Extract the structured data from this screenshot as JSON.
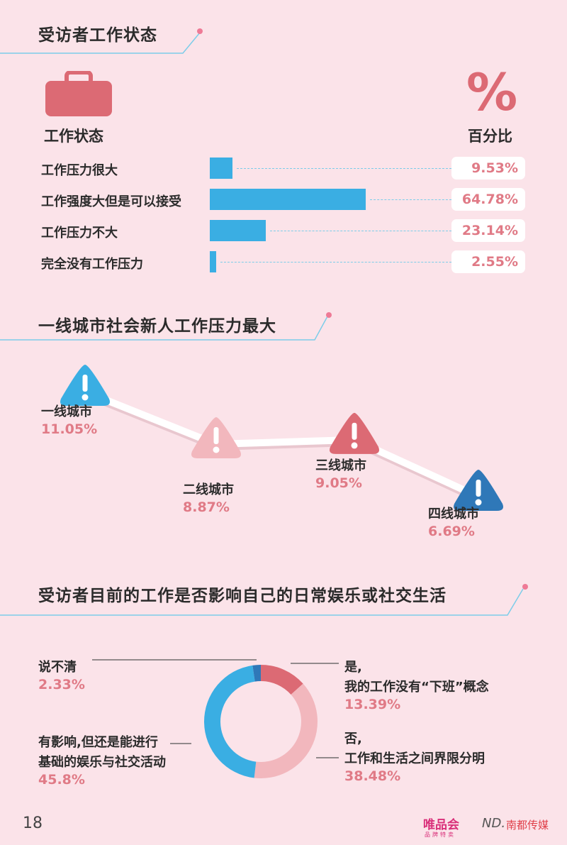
{
  "sections": {
    "work_status_title": "受访者工作状态",
    "city_title": "一线城市社会新人工作压力最大",
    "impact_title": "受访者目前的工作是否影响自己的日常娱乐或社交生活"
  },
  "work_status": {
    "category_header": "工作状态",
    "percent_symbol": "%",
    "percent_header": "百分比",
    "icon": "briefcase-icon"
  },
  "page": {
    "number": "18",
    "logo_vip": "唯品会",
    "logo_vip_sub": "品牌特卖",
    "logo_nd_mark": "ND.",
    "logo_nd": "南都传媒"
  },
  "colors": {
    "bar_blue": "#3aaee3",
    "pink": "#e07a86",
    "light_pink": "#f2b7bd",
    "red": "#dc6a74",
    "dark_blue": "#2f78b8",
    "background": "#fbe3e9"
  },
  "chart_data": [
    {
      "type": "bar",
      "orientation": "horizontal",
      "categories": [
        "工作压力很大",
        "工作强度大但是可以接受",
        "工作压力不大",
        "完全没有工作压力"
      ],
      "values": [
        9.53,
        64.78,
        23.14,
        2.55
      ],
      "value_labels": [
        "9.53%",
        "64.78%",
        "23.14%",
        "2.55%"
      ],
      "xlim": [
        0,
        100
      ]
    },
    {
      "type": "line",
      "categories": [
        "一线城市",
        "二线城市",
        "三线城市",
        "四线城市"
      ],
      "values": [
        11.05,
        8.87,
        9.05,
        6.69
      ],
      "value_labels": [
        "11.05%",
        "8.87%",
        "9.05%",
        "6.69%"
      ],
      "marker_icon": "warning-triangle-icon",
      "marker_colors": [
        "#3aaee3",
        "#f2b7bd",
        "#dc6a74",
        "#2f78b8"
      ]
    },
    {
      "type": "pie",
      "style": "donut",
      "slices": [
        {
          "label_lines": [
            "是,",
            "我的工作没有“下班”概念"
          ],
          "value": 13.39,
          "value_label": "13.39%",
          "color": "#dc6a74"
        },
        {
          "label_lines": [
            "否,",
            "工作和生活之间界限分明"
          ],
          "value": 38.48,
          "value_label": "38.48%",
          "color": "#f2b7bd"
        },
        {
          "label_lines": [
            "有影响,但还是能进行",
            "基础的娱乐与社交活动"
          ],
          "value": 45.8,
          "value_label": "45.8%",
          "color": "#3aaee3"
        },
        {
          "label_lines": [
            "说不清"
          ],
          "value": 2.33,
          "value_label": "2.33%",
          "color": "#2f78b8"
        }
      ]
    }
  ]
}
